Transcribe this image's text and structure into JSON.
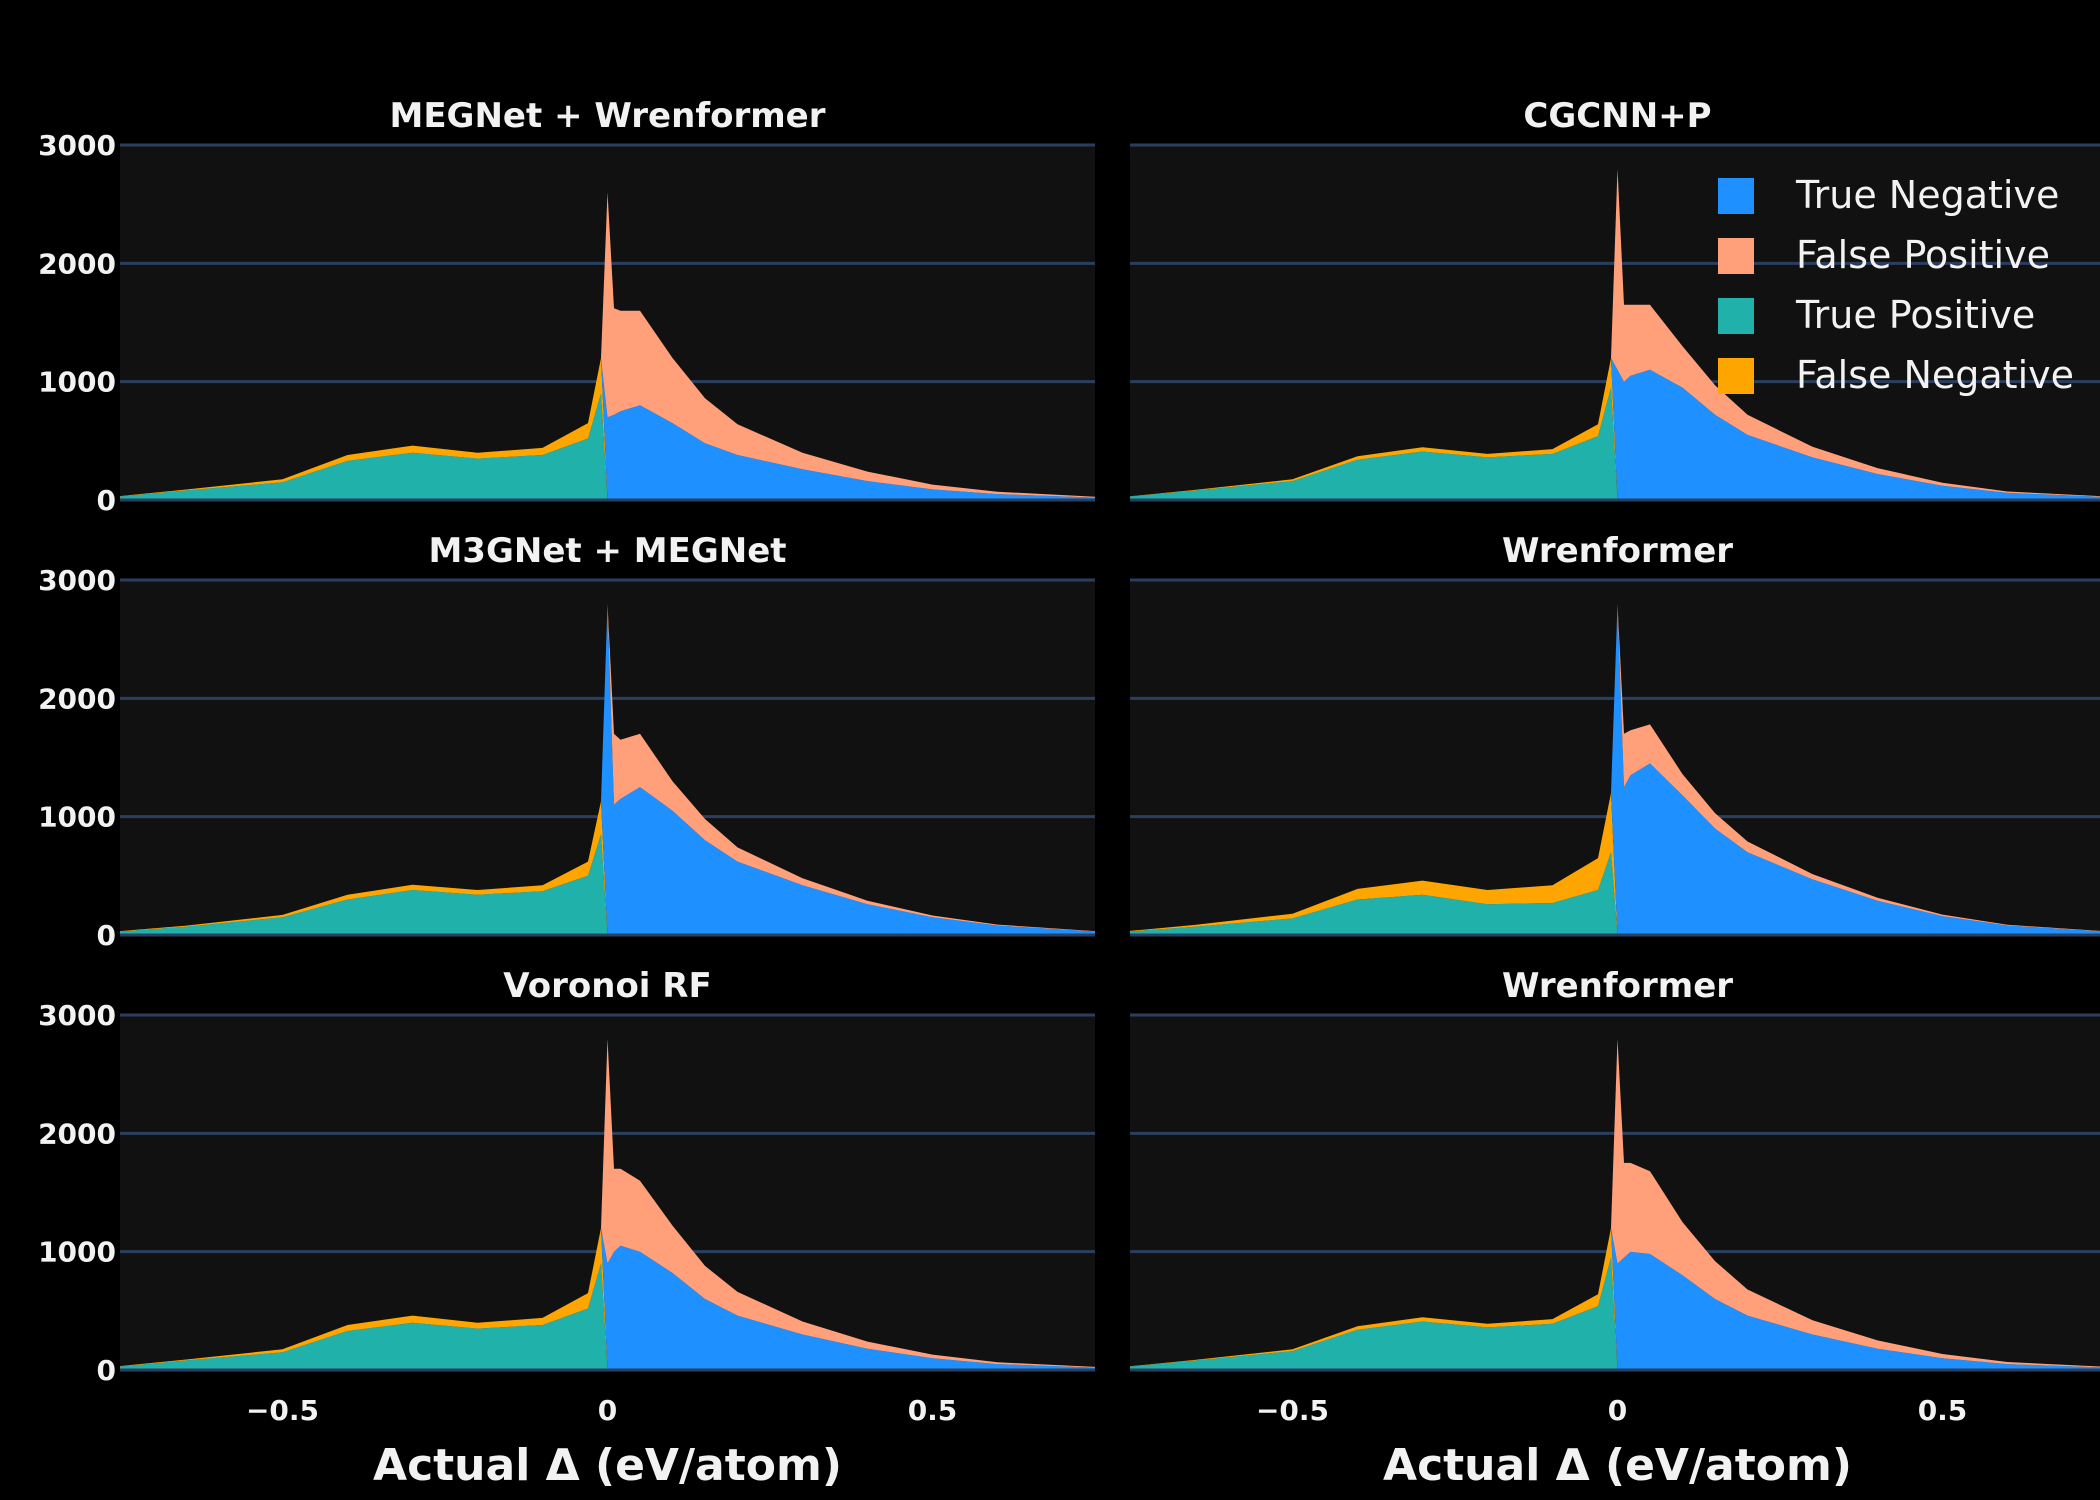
{
  "chart_data": {
    "type": "area",
    "layout": "3x2 grid of stacked histograms",
    "xlabel": "Actual Δ (eV/atom)",
    "xlim": [
      -0.75,
      0.75
    ],
    "x_ticks": [
      {
        "value": -0.5,
        "label": "−0.5"
      },
      {
        "value": 0,
        "label": "0"
      },
      {
        "value": 0.5,
        "label": "0.5"
      }
    ],
    "grid": "horizontal",
    "legend": {
      "position": "top-right",
      "entries": [
        "True Negative",
        "False Positive",
        "True Positive",
        "False Negative"
      ]
    },
    "colors": {
      "True Negative": "#1e90ff",
      "False Positive": "#ffa07a",
      "True Positive": "#20b2aa",
      "False Negative": "#ffa500",
      "plot_bg": "#111111",
      "grid": "#2a3f5f"
    },
    "x_samples": [
      -0.75,
      -0.65,
      -0.5,
      -0.4,
      -0.3,
      -0.2,
      -0.1,
      -0.03,
      -0.01,
      0,
      0.01,
      0.02,
      0.05,
      0.1,
      0.15,
      0.2,
      0.3,
      0.4,
      0.5,
      0.6,
      0.75
    ],
    "panels": [
      {
        "title": "MEGNet + Wrenformer",
        "ylim": [
          0,
          3000
        ],
        "y_ticks": [
          0,
          1000,
          2000,
          3000
        ],
        "tick_labels": [
          "0",
          "1000",
          "2000",
          "3000"
        ],
        "series": [
          {
            "name": "True Positive",
            "values": [
              30,
              80,
              150,
              330,
              400,
              350,
              380,
              520,
              900,
              0,
              0,
              0,
              0,
              0,
              0,
              0,
              0,
              0,
              0,
              0,
              0
            ]
          },
          {
            "name": "False Negative",
            "values": [
              3,
              8,
              25,
              50,
              60,
              50,
              60,
              130,
              300,
              0,
              0,
              0,
              0,
              0,
              0,
              0,
              0,
              0,
              0,
              0,
              0
            ]
          },
          {
            "name": "True Negative",
            "values": [
              0,
              0,
              0,
              0,
              0,
              0,
              0,
              0,
              0,
              700,
              720,
              750,
              800,
              650,
              480,
              380,
              260,
              160,
              90,
              50,
              20
            ]
          },
          {
            "name": "False Positive",
            "values": [
              0,
              0,
              0,
              0,
              0,
              0,
              0,
              0,
              0,
              1900,
              900,
              850,
              800,
              550,
              380,
              260,
              140,
              80,
              40,
              20,
              8
            ]
          }
        ]
      },
      {
        "title": "M3GNet + MEGNet",
        "ylim": [
          0,
          3000
        ],
        "y_ticks": [
          0,
          1000,
          2000,
          3000
        ],
        "tick_labels": [
          "0",
          "1000",
          "2000",
          "3000"
        ],
        "series": [
          {
            "name": "True Positive",
            "values": [
              30,
              70,
              150,
              300,
              380,
              340,
              370,
              500,
              850,
              0,
              0,
              0,
              0,
              0,
              0,
              0,
              0,
              0,
              0,
              0,
              0
            ]
          },
          {
            "name": "False Negative",
            "values": [
              3,
              8,
              20,
              40,
              45,
              40,
              50,
              120,
              280,
              0,
              0,
              0,
              0,
              0,
              0,
              0,
              0,
              0,
              0,
              0,
              0
            ]
          },
          {
            "name": "True Negative",
            "values": [
              0,
              0,
              0,
              0,
              0,
              0,
              0,
              0,
              0,
              2800,
              1100,
              1150,
              1250,
              1050,
              800,
              620,
              420,
              260,
              150,
              80,
              30
            ]
          },
          {
            "name": "False Positive",
            "values": [
              0,
              0,
              0,
              0,
              0,
              0,
              0,
              0,
              0,
              0,
              600,
              500,
              450,
              250,
              180,
              120,
              60,
              30,
              15,
              8,
              3
            ]
          }
        ]
      },
      {
        "title": "Voronoi RF",
        "ylim": [
          0,
          3000
        ],
        "y_ticks": [
          0,
          1000,
          2000,
          3000
        ],
        "tick_labels": [
          "0",
          "1000",
          "2000",
          "3000"
        ],
        "series": [
          {
            "name": "True Positive",
            "values": [
              30,
              80,
              150,
              330,
              400,
              350,
              380,
              520,
              900,
              0,
              0,
              0,
              0,
              0,
              0,
              0,
              0,
              0,
              0,
              0,
              0
            ]
          },
          {
            "name": "False Negative",
            "values": [
              3,
              8,
              25,
              50,
              60,
              50,
              60,
              130,
              300,
              0,
              0,
              0,
              0,
              0,
              0,
              0,
              0,
              0,
              0,
              0,
              0
            ]
          },
          {
            "name": "True Negative",
            "values": [
              0,
              0,
              0,
              0,
              0,
              0,
              0,
              0,
              0,
              900,
              1000,
              1050,
              1000,
              820,
              600,
              460,
              300,
              180,
              100,
              50,
              20
            ]
          },
          {
            "name": "False Positive",
            "values": [
              0,
              0,
              0,
              0,
              0,
              0,
              0,
              0,
              0,
              1900,
              700,
              650,
              600,
              400,
              280,
              200,
              110,
              60,
              30,
              15,
              6
            ]
          }
        ]
      },
      {
        "title": "CGCNN+P",
        "ylim": [
          0,
          3000
        ],
        "y_ticks": [
          0,
          1000,
          2000,
          3000
        ],
        "tick_labels": [
          "0",
          "1000",
          "2000",
          "3000"
        ],
        "series": [
          {
            "name": "True Positive",
            "values": [
              30,
              80,
              160,
              340,
              410,
              360,
              390,
              540,
              950,
              0,
              0,
              0,
              0,
              0,
              0,
              0,
              0,
              0,
              0,
              0,
              0
            ]
          },
          {
            "name": "False Negative",
            "values": [
              2,
              5,
              15,
              30,
              35,
              30,
              40,
              100,
              250,
              0,
              0,
              0,
              0,
              0,
              0,
              0,
              0,
              0,
              0,
              0,
              0
            ]
          },
          {
            "name": "True Negative",
            "values": [
              0,
              0,
              0,
              0,
              0,
              0,
              0,
              0,
              0,
              1100,
              1000,
              1050,
              1100,
              950,
              720,
              550,
              360,
              220,
              120,
              60,
              25
            ]
          },
          {
            "name": "False Positive",
            "values": [
              0,
              0,
              0,
              0,
              0,
              0,
              0,
              0,
              0,
              1700,
              650,
              600,
              550,
              350,
              250,
              170,
              90,
              50,
              25,
              12,
              5
            ]
          }
        ]
      },
      {
        "title": "Wrenformer",
        "ylim": [
          0,
          3000
        ],
        "y_ticks": [
          0,
          1000,
          2000,
          3000
        ],
        "tick_labels": [
          "0",
          "1000",
          "2000",
          "3000"
        ],
        "series": [
          {
            "name": "True Positive",
            "values": [
              30,
              70,
              140,
              300,
              340,
              260,
              270,
              380,
              700,
              0,
              0,
              0,
              0,
              0,
              0,
              0,
              0,
              0,
              0,
              0,
              0
            ]
          },
          {
            "name": "False Negative",
            "values": [
              5,
              15,
              40,
              90,
              120,
              120,
              150,
              270,
              500,
              0,
              0,
              0,
              0,
              0,
              0,
              0,
              0,
              0,
              0,
              0,
              0
            ]
          },
          {
            "name": "True Negative",
            "values": [
              0,
              0,
              0,
              0,
              0,
              0,
              0,
              0,
              0,
              2800,
              1250,
              1350,
              1450,
              1180,
              900,
              700,
              470,
              290,
              160,
              80,
              30
            ]
          },
          {
            "name": "False Positive",
            "values": [
              0,
              0,
              0,
              0,
              0,
              0,
              0,
              0,
              0,
              0,
              450,
              380,
              330,
              180,
              130,
              90,
              45,
              25,
              12,
              6,
              2
            ]
          }
        ]
      },
      {
        "title": "Wrenformer",
        "ylim": [
          0,
          3000
        ],
        "y_ticks": [
          0,
          1000,
          2000,
          3000
        ],
        "tick_labels": [
          "0",
          "1000",
          "2000",
          "3000"
        ],
        "series": [
          {
            "name": "True Positive",
            "values": [
              30,
              80,
              160,
              340,
              410,
              360,
              390,
              540,
              950,
              0,
              0,
              0,
              0,
              0,
              0,
              0,
              0,
              0,
              0,
              0,
              0
            ]
          },
          {
            "name": "False Negative",
            "values": [
              2,
              5,
              15,
              30,
              35,
              30,
              40,
              100,
              250,
              0,
              0,
              0,
              0,
              0,
              0,
              0,
              0,
              0,
              0,
              0,
              0
            ]
          },
          {
            "name": "True Negative",
            "values": [
              0,
              0,
              0,
              0,
              0,
              0,
              0,
              0,
              0,
              900,
              950,
              1000,
              980,
              800,
              600,
              460,
              300,
              180,
              100,
              50,
              20
            ]
          },
          {
            "name": "False Positive",
            "values": [
              0,
              0,
              0,
              0,
              0,
              0,
              0,
              0,
              0,
              1900,
              800,
              750,
              700,
              450,
              320,
              220,
              120,
              70,
              35,
              18,
              7
            ]
          }
        ]
      }
    ]
  }
}
